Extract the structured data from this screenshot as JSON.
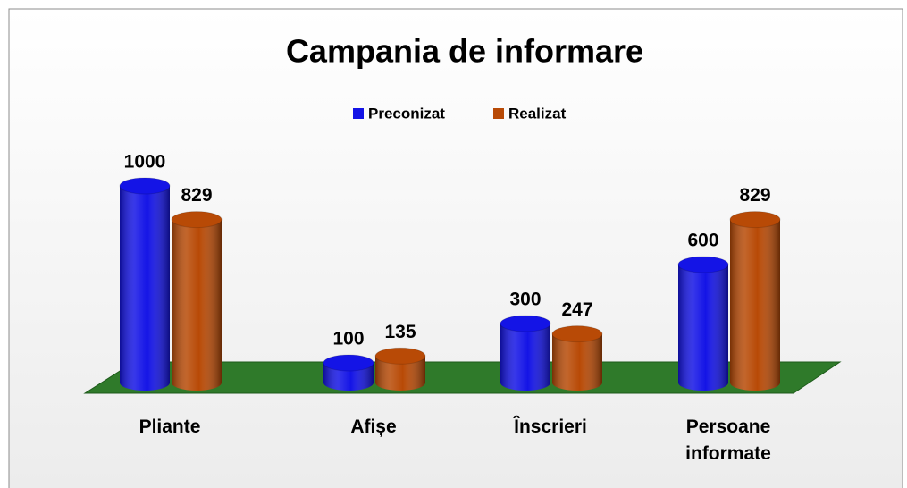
{
  "chart_data": {
    "type": "bar3d",
    "title": "Campania de informare",
    "categories": [
      "Pliante",
      "Afișe",
      "Înscrieri",
      "Persoane informate"
    ],
    "series": [
      {
        "name": "Preconizat",
        "color": "#1414e6",
        "values": [
          1000,
          100,
          300,
          600
        ]
      },
      {
        "name": "Realizat",
        "color": "#b84a06",
        "values": [
          829,
          135,
          247,
          829
        ]
      }
    ],
    "legend": "top"
  }
}
